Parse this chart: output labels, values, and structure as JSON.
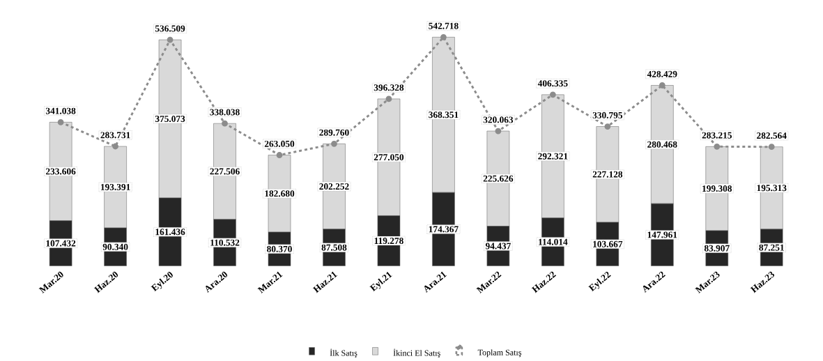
{
  "chart_data": {
    "type": "bar",
    "stacked": true,
    "legend": "bottom",
    "categories": [
      "Mar.20",
      "Haz.20",
      "Eyl.20",
      "Ara.20",
      "Mar.21",
      "Haz.21",
      "Eyl.21",
      "Ara.21",
      "Mar.22",
      "Haz.22",
      "Eyl.22",
      "Ara.22",
      "Mar.23",
      "Haz.23"
    ],
    "series": [
      {
        "name": "İlk Satış",
        "color": "#262626",
        "values": [
          107432,
          90340,
          161436,
          110532,
          80370,
          87508,
          119278,
          174367,
          94437,
          114014,
          103667,
          147961,
          83907,
          87251
        ],
        "value_labels": [
          "107.432",
          "90.340",
          "161.436",
          "110.532",
          "80.370",
          "87.508",
          "119.278",
          "174.367",
          "94.437",
          "114.014",
          "103.667",
          "147.961",
          "83.907",
          "87.251"
        ]
      },
      {
        "name": "İkinci El Satış",
        "color": "#d9d9d9",
        "values": [
          233606,
          193391,
          375073,
          227506,
          182680,
          202252,
          277050,
          368351,
          225626,
          292321,
          227128,
          280468,
          199308,
          195313
        ],
        "value_labels": [
          "233.606",
          "193.391",
          "375.073",
          "227.506",
          "182.680",
          "202.252",
          "277.050",
          "368.351",
          "225.626",
          "292.321",
          "227.128",
          "280.468",
          "199.308",
          "195.313"
        ]
      },
      {
        "name": "Toplam Satış",
        "type": "line",
        "color": "#8c8c8c",
        "line_style": "dashed",
        "marker": "circle",
        "values": [
          341038,
          283731,
          536509,
          338038,
          263050,
          289760,
          396328,
          542718,
          320063,
          406335,
          330795,
          428429,
          283215,
          282564
        ],
        "value_labels": [
          "341.038",
          "283.731",
          "536.509",
          "338.038",
          "263.050",
          "289.760",
          "396.328",
          "542.718",
          "320.063",
          "406.335",
          "330.795",
          "428.429",
          "283.215",
          "282.564"
        ]
      }
    ]
  }
}
